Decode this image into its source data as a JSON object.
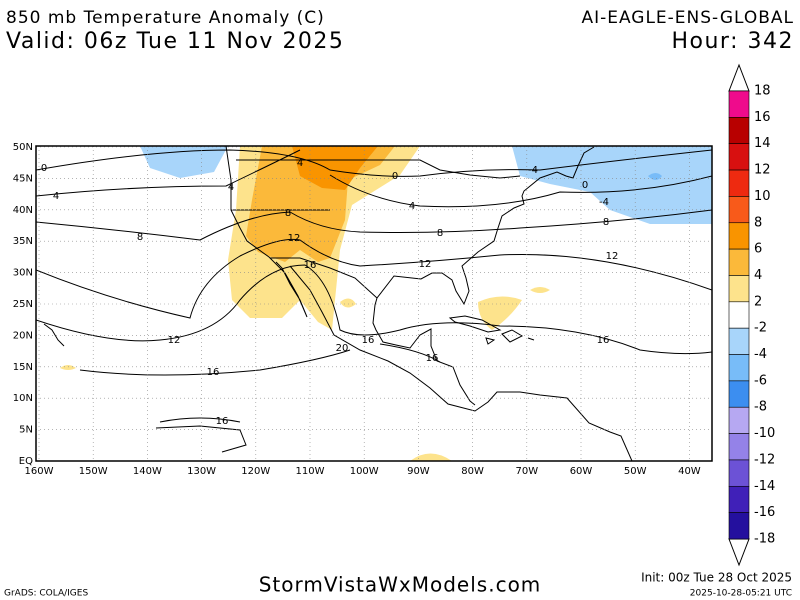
{
  "header": {
    "title": "850 mb Temperature Anomaly (C)",
    "valid": "Valid: 06z Tue 11 Nov 2025",
    "model": "AI-EAGLE-ENS-GLOBAL",
    "hour": "Hour: 342"
  },
  "map": {
    "lat_labels": [
      "50N",
      "45N",
      "40N",
      "35N",
      "30N",
      "25N",
      "20N",
      "15N",
      "10N",
      "5N",
      "EQ"
    ],
    "lon_labels": [
      "160W",
      "150W",
      "140W",
      "130W",
      "120W",
      "110W",
      "100W",
      "90W",
      "80W",
      "70W",
      "60W",
      "50W",
      "40W"
    ],
    "contour_labels": [
      "0",
      "4",
      "8",
      "12",
      "16",
      "16",
      "4",
      "4",
      "8",
      "12",
      "16",
      "20",
      "16",
      "16",
      "12",
      "8",
      "4",
      "0",
      "-4",
      "0",
      "-4",
      "8",
      "12",
      "16"
    ]
  },
  "colorbar": {
    "labels": [
      18,
      16,
      14,
      12,
      10,
      8,
      6,
      4,
      2,
      -2,
      -4,
      -6,
      -8,
      -10,
      -12,
      -14,
      -16,
      -18
    ],
    "colors": [
      "#ef0b8c",
      "#b80000",
      "#d81010",
      "#ee2a10",
      "#f85a1a",
      "#f99400",
      "#fbb93a",
      "#fde38c",
      "#ffffff",
      "#a8d5fa",
      "#78bcf8",
      "#3c8ef0",
      "#b6a8f2",
      "#9482e8",
      "#6c52d6",
      "#4020b8",
      "#24109e",
      "#8a00e0"
    ]
  },
  "footer": {
    "credit": "GrADS: COLA/IGES",
    "site": "StormVistaWxModels.com",
    "init": "Init: 00z Tue 28 Oct 2025",
    "stamp": "2025-10-28-05:21 UTC"
  }
}
